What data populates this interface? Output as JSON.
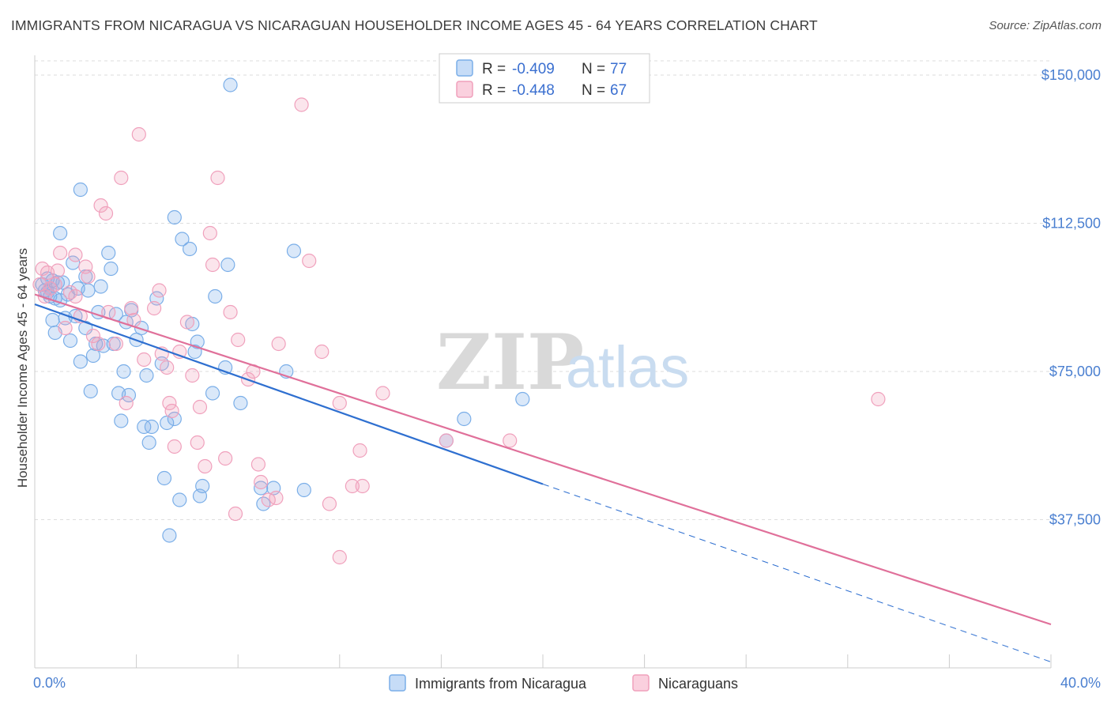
{
  "title": "IMMIGRANTS FROM NICARAGUA VS NICARAGUAN HOUSEHOLDER INCOME AGES 45 - 64 YEARS CORRELATION CHART",
  "source": "Source: ZipAtlas.com",
  "watermark": {
    "zip": "ZIP",
    "atlas": "atlas"
  },
  "legend_box": {
    "rows": [
      {
        "r_label": "R = ",
        "r_value": "-0.409",
        "n_label": "N = ",
        "n_value": "77",
        "color": "#7aaee8"
      },
      {
        "r_label": "R = ",
        "r_value": "-0.448",
        "n_label": "N = ",
        "n_value": "67",
        "color": "#f0a0bc"
      }
    ]
  },
  "chart_data": {
    "type": "scatter",
    "title": "IMMIGRANTS FROM NICARAGUA VS NICARAGUAN HOUSEHOLDER INCOME AGES 45 - 64 YEARS CORRELATION CHART",
    "xlabel": "",
    "ylabel": "Householder Income Ages 45 - 64 years",
    "xlim": [
      0,
      40
    ],
    "ylim": [
      0,
      155000
    ],
    "x_tick_labels": [
      "0.0%",
      "40.0%"
    ],
    "y_ticks": [
      37500,
      75000,
      112500,
      150000
    ],
    "y_tick_labels": [
      "$37,500",
      "$75,000",
      "$112,500",
      "$150,000"
    ],
    "grid": true,
    "legend_placement": "bottom-center",
    "series": [
      {
        "name": "Immigrants from Nicaragua",
        "color": "#7aaee8",
        "line_color": "#2e6fd0",
        "trend": {
          "x": [
            0,
            20
          ],
          "y": [
            92000,
            46500
          ],
          "dashed_to": [
            40,
            1500
          ]
        },
        "points": [
          [
            0.3,
            97000
          ],
          [
            0.4,
            95500
          ],
          [
            0.5,
            98500
          ],
          [
            0.6,
            96000
          ],
          [
            0.7,
            98000
          ],
          [
            0.8,
            93500
          ],
          [
            0.9,
            97500
          ],
          [
            0.6,
            94000
          ],
          [
            0.7,
            88000
          ],
          [
            0.8,
            84800
          ],
          [
            1.0,
            93000
          ],
          [
            1.0,
            110000
          ],
          [
            1.1,
            97500
          ],
          [
            1.2,
            88500
          ],
          [
            1.4,
            82800
          ],
          [
            1.5,
            102500
          ],
          [
            1.6,
            89000
          ],
          [
            1.7,
            96000
          ],
          [
            1.8,
            77500
          ],
          [
            1.8,
            121000
          ],
          [
            2.0,
            86000
          ],
          [
            2.1,
            95500
          ],
          [
            2.2,
            70000
          ],
          [
            2.3,
            79000
          ],
          [
            2.4,
            82000
          ],
          [
            2.5,
            90000
          ],
          [
            2.6,
            96500
          ],
          [
            2.7,
            81500
          ],
          [
            2.9,
            105000
          ],
          [
            3.0,
            101000
          ],
          [
            3.1,
            82000
          ],
          [
            3.2,
            89500
          ],
          [
            3.3,
            69500
          ],
          [
            3.4,
            62500
          ],
          [
            3.5,
            75000
          ],
          [
            3.6,
            87500
          ],
          [
            3.7,
            69000
          ],
          [
            3.8,
            90500
          ],
          [
            4.0,
            83000
          ],
          [
            4.2,
            86000
          ],
          [
            4.3,
            61000
          ],
          [
            4.4,
            74000
          ],
          [
            4.5,
            57000
          ],
          [
            4.6,
            61000
          ],
          [
            4.8,
            93500
          ],
          [
            5.0,
            77000
          ],
          [
            5.1,
            48000
          ],
          [
            5.2,
            62000
          ],
          [
            5.3,
            33500
          ],
          [
            5.5,
            63000
          ],
          [
            5.5,
            114000
          ],
          [
            5.7,
            42500
          ],
          [
            5.8,
            108500
          ],
          [
            6.1,
            106000
          ],
          [
            6.2,
            87000
          ],
          [
            6.3,
            80000
          ],
          [
            6.4,
            82500
          ],
          [
            6.5,
            43500
          ],
          [
            6.6,
            46000
          ],
          [
            7.0,
            69500
          ],
          [
            7.1,
            94000
          ],
          [
            7.5,
            76000
          ],
          [
            7.6,
            102000
          ],
          [
            7.7,
            147500
          ],
          [
            8.1,
            67000
          ],
          [
            8.9,
            45500
          ],
          [
            9.0,
            41500
          ],
          [
            9.4,
            45500
          ],
          [
            9.9,
            75000
          ],
          [
            10.2,
            105500
          ],
          [
            10.6,
            45000
          ],
          [
            16.2,
            57500
          ],
          [
            16.9,
            63000
          ],
          [
            19.2,
            68000
          ],
          [
            0.5,
            95000
          ],
          [
            1.3,
            94500
          ],
          [
            2.0,
            99000
          ]
        ]
      },
      {
        "name": "Nicaraguans",
        "color": "#f0a0bc",
        "line_color": "#e0709a",
        "trend": {
          "x": [
            0,
            40
          ],
          "y": [
            94500,
            11000
          ]
        },
        "points": [
          [
            0.2,
            97000
          ],
          [
            0.3,
            101000
          ],
          [
            0.4,
            94000
          ],
          [
            0.5,
            100000
          ],
          [
            0.6,
            96000
          ],
          [
            0.8,
            97000
          ],
          [
            0.9,
            100500
          ],
          [
            1.0,
            105000
          ],
          [
            1.2,
            86000
          ],
          [
            1.4,
            95000
          ],
          [
            1.6,
            94000
          ],
          [
            1.6,
            104500
          ],
          [
            1.8,
            89000
          ],
          [
            2.0,
            101500
          ],
          [
            2.1,
            99000
          ],
          [
            2.3,
            84000
          ],
          [
            2.5,
            82000
          ],
          [
            2.6,
            117000
          ],
          [
            2.8,
            115000
          ],
          [
            2.9,
            90000
          ],
          [
            3.2,
            82000
          ],
          [
            3.4,
            124000
          ],
          [
            3.6,
            67000
          ],
          [
            3.8,
            91000
          ],
          [
            3.9,
            88000
          ],
          [
            4.1,
            135000
          ],
          [
            4.3,
            78000
          ],
          [
            4.7,
            91000
          ],
          [
            4.9,
            95500
          ],
          [
            5.0,
            79500
          ],
          [
            5.2,
            76000
          ],
          [
            5.3,
            67000
          ],
          [
            5.4,
            65000
          ],
          [
            5.5,
            56000
          ],
          [
            5.7,
            80000
          ],
          [
            6.0,
            87500
          ],
          [
            6.2,
            74000
          ],
          [
            6.4,
            57000
          ],
          [
            6.5,
            66000
          ],
          [
            6.7,
            51000
          ],
          [
            6.9,
            110000
          ],
          [
            7.0,
            102000
          ],
          [
            7.2,
            124000
          ],
          [
            7.5,
            53000
          ],
          [
            7.7,
            90000
          ],
          [
            7.9,
            39000
          ],
          [
            8.0,
            83000
          ],
          [
            8.4,
            73000
          ],
          [
            8.6,
            75000
          ],
          [
            8.8,
            51500
          ],
          [
            8.9,
            47000
          ],
          [
            9.2,
            42500
          ],
          [
            9.5,
            43000
          ],
          [
            9.6,
            82000
          ],
          [
            10.5,
            142500
          ],
          [
            10.8,
            103000
          ],
          [
            11.3,
            80000
          ],
          [
            11.6,
            41500
          ],
          [
            12.0,
            67000
          ],
          [
            12.5,
            46000
          ],
          [
            12.8,
            55000
          ],
          [
            12.9,
            46000
          ],
          [
            13.7,
            69500
          ],
          [
            16.2,
            57500
          ],
          [
            18.7,
            57500
          ],
          [
            33.2,
            68000
          ],
          [
            12.0,
            28000
          ]
        ]
      }
    ]
  }
}
